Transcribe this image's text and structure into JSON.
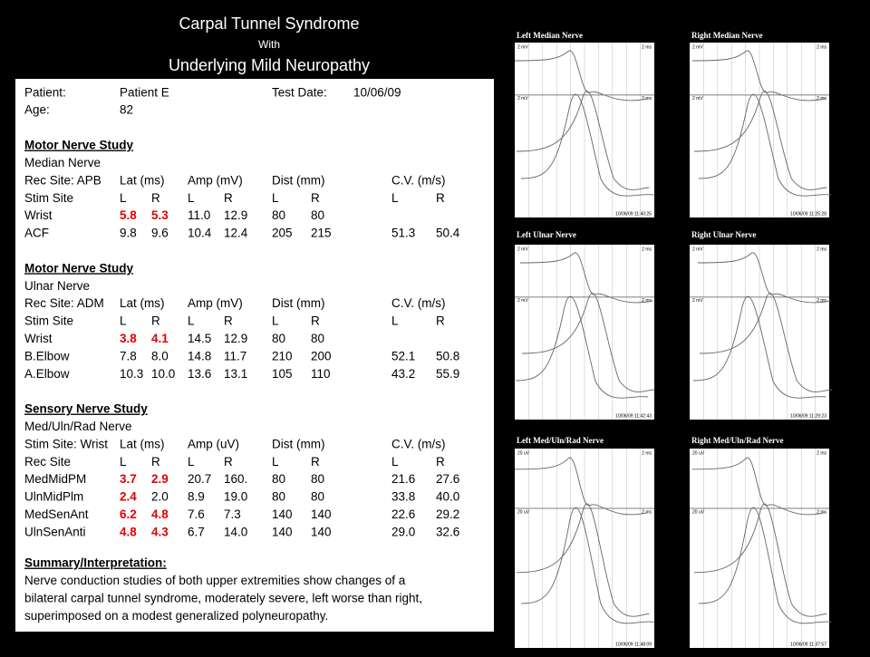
{
  "title": {
    "line1": "Carpal Tunnel Syndrome",
    "line2": "With",
    "line3": "Underlying Mild Neuropathy"
  },
  "patient": {
    "label": "Patient:",
    "value": "Patient E",
    "date_label": "Test Date:",
    "date": "10/06/09"
  },
  "age": {
    "label": "Age:",
    "value": "82"
  },
  "highlight_color": "#e00000",
  "sections": [
    {
      "heading": "Motor Nerve Study",
      "nerve": "Median Nerve",
      "rows": [
        [
          "Rec Site: APB",
          "Lat (ms)",
          null,
          "Amp (mV)",
          null,
          "Dist (mm)",
          null,
          "C.V. (m/s)",
          null
        ],
        [
          "Stim Site",
          "L",
          "R",
          "L",
          "R",
          "L",
          "R",
          "L",
          "R"
        ],
        [
          "Wrist",
          {
            "text": "5.8",
            "highlight": true
          },
          {
            "text": "5.3",
            "highlight": true
          },
          "11.0",
          "12.9",
          "80",
          "80",
          null,
          null
        ],
        [
          "ACF",
          "9.8",
          "9.6",
          "10.4",
          "12.4",
          "205",
          "215",
          "51.3",
          "50.4"
        ]
      ]
    },
    {
      "heading": "Motor Nerve Study",
      "nerve": "Ulnar Nerve",
      "rows": [
        [
          "Rec Site: ADM",
          "Lat (ms)",
          null,
          "Amp (mV)",
          null,
          "Dist (mm)",
          null,
          "C.V. (m/s)",
          null
        ],
        [
          "Stim Site",
          "L",
          "R",
          "L",
          "R",
          "L",
          "R",
          "L",
          "R"
        ],
        [
          "Wrist",
          {
            "text": "3.8",
            "highlight": true
          },
          {
            "text": "4.1",
            "highlight": true
          },
          "14.5",
          "12.9",
          "80",
          "80",
          null,
          null
        ],
        [
          "B.Elbow",
          "7.8",
          "8.0",
          "14.8",
          "11.7",
          "210",
          "200",
          "52.1",
          "50.8"
        ],
        [
          "A.Elbow",
          "10.3",
          "10.0",
          "13.6",
          "13.1",
          "105",
          "110",
          "43.2",
          "55.9"
        ]
      ]
    },
    {
      "heading": "Sensory Nerve Study",
      "nerve": "Med/Uln/Rad Nerve",
      "rows": [
        [
          "Stim Site: Wrist",
          "Lat (ms)",
          null,
          "Amp (uV)",
          null,
          "Dist (mm)",
          null,
          "C.V. (m/s)",
          null
        ],
        [
          "Rec Site",
          "L",
          "R",
          "L",
          "R",
          "L",
          "R",
          "L",
          "R"
        ],
        [
          "MedMidPM",
          {
            "text": "3.7",
            "highlight": true
          },
          {
            "text": "2.9",
            "highlight": true
          },
          "20.7",
          "160.",
          "80",
          "80",
          "21.6",
          "27.6"
        ],
        [
          "UlnMidPlm",
          {
            "text": "2.4",
            "highlight": true
          },
          "2.0",
          "8.9",
          "19.0",
          "80",
          "80",
          "33.8",
          "40.0"
        ],
        [
          "MedSenAnt",
          {
            "text": "6.2",
            "highlight": true
          },
          {
            "text": "4.8",
            "highlight": true
          },
          "7.6",
          "7.3",
          "140",
          "140",
          "22.6",
          "29.2"
        ],
        [
          "UlnSenAnti",
          {
            "text": "4.8",
            "highlight": true
          },
          {
            "text": "4.3",
            "highlight": true
          },
          "6.7",
          "14.0",
          "140",
          "140",
          "29.0",
          "32.6"
        ]
      ]
    }
  ],
  "summary": {
    "heading": "Summary/Interpretation:",
    "lines": [
      "Nerve conduction studies of both upper extremities show changes of a",
      "bilateral carpal tunnel syndrome, moderately severe, left worse than right,",
      "superimposed on a modest generalized polyneuropathy."
    ]
  },
  "panels": [
    {
      "label": "Left Median Nerve",
      "amp": "2 mV",
      "time": "2 ms",
      "timestamp": "10/06/09 11:40:25"
    },
    {
      "label": "Right Median Nerve",
      "amp": "2 mV",
      "time": "2 ms",
      "timestamp": "10/06/09 11:25:28"
    },
    {
      "label": "Left Ulnar Nerve",
      "amp": "2 mV",
      "time": "2 ms",
      "timestamp": "10/06/09 11:42:43"
    },
    {
      "label": "Right Ulnar Nerve",
      "amp": "2 mV",
      "time": "2 ms",
      "timestamp": "10/06/09 11:29:23"
    },
    {
      "label": "Left Med/Uln/Rad Nerve",
      "amp": "20 uV",
      "time": "2 ms",
      "timestamp": "10/06/09 11:48:09"
    },
    {
      "label": "Right Med/Uln/Rad Nerve",
      "amp": "20 uV",
      "time": "2 ms",
      "timestamp": "10/06/09 11:37:57"
    }
  ]
}
